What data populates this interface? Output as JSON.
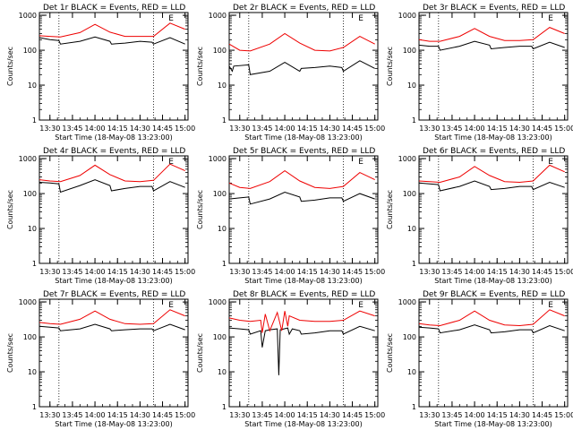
{
  "figure": {
    "ylabel": "Counts/sec",
    "xlabel": "Start Time (18-May-08 13:23:00)",
    "legend_text": "BLACK = Events, RED = LLD",
    "flag_text": "E",
    "x_ticks": [
      "13:30",
      "13:45",
      "14:00",
      "14:15",
      "14:30",
      "14:45",
      "15:00"
    ],
    "y_ticks": [
      "1",
      "10",
      "100",
      "1000"
    ],
    "y_scale": "log"
  },
  "colors": {
    "events": "#000000",
    "lld": "#ee0000",
    "axes": "#000000"
  },
  "chart_data": [
    {
      "type": "line",
      "title": "Det 1r",
      "xlim": [
        13.383,
        15.033
      ],
      "ylim": [
        1,
        1000
      ],
      "vlines": [
        "13:36",
        "14:39"
      ],
      "series": [
        {
          "name": "Events",
          "x": [
            "13:23",
            "13:30",
            "13:36",
            "13:37",
            "13:50",
            "14:00",
            "14:10",
            "14:11",
            "14:20",
            "14:30",
            "14:38",
            "14:39",
            "14:50",
            "15:00"
          ],
          "values": [
            230,
            200,
            190,
            150,
            180,
            240,
            180,
            150,
            160,
            180,
            170,
            150,
            230,
            150
          ]
        },
        {
          "name": "LLD",
          "x": [
            "13:23",
            "13:30",
            "13:37",
            "13:50",
            "14:00",
            "14:10",
            "14:20",
            "14:30",
            "14:39",
            "14:50",
            "15:00"
          ],
          "values": [
            260,
            250,
            240,
            320,
            550,
            330,
            250,
            250,
            250,
            600,
            400
          ]
        }
      ]
    },
    {
      "type": "line",
      "title": "Det 2r",
      "xlim": [
        13.383,
        15.033
      ],
      "ylim": [
        1,
        1000
      ],
      "vlines": [
        "13:36",
        "14:39"
      ],
      "series": [
        {
          "name": "Events",
          "x": [
            "13:23",
            "13:25",
            "13:26",
            "13:36",
            "13:37",
            "13:50",
            "14:00",
            "14:10",
            "14:11",
            "14:20",
            "14:30",
            "14:38",
            "14:39",
            "14:50",
            "15:00"
          ],
          "values": [
            35,
            25,
            35,
            38,
            20,
            25,
            45,
            25,
            30,
            32,
            35,
            32,
            25,
            50,
            30
          ]
        },
        {
          "name": "LLD",
          "x": [
            "13:23",
            "13:30",
            "13:37",
            "13:50",
            "14:00",
            "14:10",
            "14:20",
            "14:30",
            "14:39",
            "14:50",
            "15:00"
          ],
          "values": [
            150,
            100,
            95,
            150,
            300,
            160,
            100,
            95,
            120,
            250,
            150
          ]
        }
      ]
    },
    {
      "type": "line",
      "title": "Det 3r",
      "xlim": [
        13.383,
        15.033
      ],
      "ylim": [
        1,
        1000
      ],
      "vlines": [
        "13:36",
        "14:39"
      ],
      "series": [
        {
          "name": "Events",
          "x": [
            "13:23",
            "13:30",
            "13:36",
            "13:37",
            "13:50",
            "14:00",
            "14:10",
            "14:11",
            "14:20",
            "14:30",
            "14:38",
            "14:39",
            "14:50",
            "15:00"
          ],
          "values": [
            140,
            130,
            130,
            100,
            130,
            180,
            140,
            110,
            120,
            130,
            130,
            110,
            170,
            120
          ]
        },
        {
          "name": "LLD",
          "x": [
            "13:23",
            "13:30",
            "13:37",
            "13:50",
            "14:00",
            "14:10",
            "14:20",
            "14:30",
            "14:39",
            "14:50",
            "15:00"
          ],
          "values": [
            200,
            180,
            180,
            250,
            420,
            250,
            190,
            190,
            200,
            450,
            300
          ]
        }
      ]
    },
    {
      "type": "line",
      "title": "Det 4r",
      "xlim": [
        13.383,
        15.033
      ],
      "ylim": [
        1,
        1000
      ],
      "vlines": [
        "13:36",
        "14:39"
      ],
      "series": [
        {
          "name": "Events",
          "x": [
            "13:23",
            "13:30",
            "13:36",
            "13:37",
            "13:50",
            "14:00",
            "14:10",
            "14:11",
            "14:20",
            "14:30",
            "14:38",
            "14:39",
            "14:50",
            "15:00"
          ],
          "values": [
            210,
            200,
            190,
            110,
            170,
            250,
            170,
            120,
            140,
            160,
            160,
            120,
            220,
            150
          ]
        },
        {
          "name": "LLD",
          "x": [
            "13:23",
            "13:30",
            "13:37",
            "13:50",
            "14:00",
            "14:10",
            "14:20",
            "14:30",
            "14:39",
            "14:50",
            "15:00"
          ],
          "values": [
            250,
            230,
            220,
            330,
            650,
            350,
            230,
            220,
            240,
            700,
            450
          ]
        }
      ]
    },
    {
      "type": "line",
      "title": "Det 5r",
      "xlim": [
        13.383,
        15.033
      ],
      "ylim": [
        1,
        1000
      ],
      "vlines": [
        "13:36",
        "14:39"
      ],
      "series": [
        {
          "name": "Events",
          "x": [
            "13:23",
            "13:30",
            "13:36",
            "13:37",
            "13:50",
            "14:00",
            "14:10",
            "14:11",
            "14:20",
            "14:30",
            "14:38",
            "14:39",
            "14:50",
            "15:00"
          ],
          "values": [
            70,
            75,
            80,
            50,
            70,
            110,
            80,
            60,
            65,
            75,
            75,
            60,
            100,
            70
          ]
        },
        {
          "name": "LLD",
          "x": [
            "13:23",
            "13:30",
            "13:37",
            "13:50",
            "14:00",
            "14:10",
            "14:20",
            "14:30",
            "14:39",
            "14:50",
            "15:00"
          ],
          "values": [
            200,
            150,
            140,
            220,
            450,
            230,
            150,
            140,
            160,
            400,
            250
          ]
        }
      ]
    },
    {
      "type": "line",
      "title": "Det 6r",
      "xlim": [
        13.383,
        15.033
      ],
      "ylim": [
        1,
        1000
      ],
      "vlines": [
        "13:36",
        "14:39"
      ],
      "series": [
        {
          "name": "Events",
          "x": [
            "13:23",
            "13:30",
            "13:36",
            "13:37",
            "13:50",
            "14:00",
            "14:10",
            "14:11",
            "14:20",
            "14:30",
            "14:38",
            "14:39",
            "14:50",
            "15:00"
          ],
          "values": [
            200,
            190,
            180,
            120,
            160,
            230,
            160,
            130,
            140,
            160,
            160,
            130,
            210,
            150
          ]
        },
        {
          "name": "LLD",
          "x": [
            "13:23",
            "13:30",
            "13:37",
            "13:50",
            "14:00",
            "14:10",
            "14:20",
            "14:30",
            "14:39",
            "14:50",
            "15:00"
          ],
          "values": [
            230,
            220,
            210,
            300,
            600,
            330,
            220,
            210,
            230,
            650,
            420
          ]
        }
      ]
    },
    {
      "type": "line",
      "title": "Det 7r",
      "xlim": [
        13.383,
        15.033
      ],
      "ylim": [
        1,
        1000
      ],
      "vlines": [
        "13:36",
        "14:39"
      ],
      "series": [
        {
          "name": "Events",
          "x": [
            "13:23",
            "13:30",
            "13:36",
            "13:37",
            "13:50",
            "14:00",
            "14:10",
            "14:11",
            "14:20",
            "14:30",
            "14:38",
            "14:39",
            "14:50",
            "15:00"
          ],
          "values": [
            200,
            190,
            180,
            150,
            170,
            230,
            170,
            150,
            160,
            170,
            170,
            150,
            230,
            160
          ]
        },
        {
          "name": "LLD",
          "x": [
            "13:23",
            "13:30",
            "13:37",
            "13:50",
            "14:00",
            "14:10",
            "14:20",
            "14:30",
            "14:39",
            "14:50",
            "15:00"
          ],
          "values": [
            260,
            240,
            230,
            320,
            550,
            320,
            240,
            230,
            240,
            600,
            400
          ]
        }
      ]
    },
    {
      "type": "line",
      "title": "Det 8r",
      "xlim": [
        13.383,
        15.033
      ],
      "ylim": [
        1,
        1000
      ],
      "vlines": [
        "13:36",
        "14:39"
      ],
      "series": [
        {
          "name": "Events",
          "x": [
            "13:23",
            "13:30",
            "13:36",
            "13:37",
            "13:44",
            "13:45",
            "13:47",
            "13:50",
            "13:55",
            "13:56",
            "13:57",
            "14:02",
            "14:03",
            "14:05",
            "14:10",
            "14:11",
            "14:20",
            "14:30",
            "14:38",
            "14:39",
            "14:50",
            "15:00"
          ],
          "values": [
            180,
            170,
            160,
            120,
            150,
            50,
            150,
            160,
            170,
            8,
            160,
            180,
            120,
            170,
            150,
            120,
            130,
            150,
            150,
            120,
            200,
            150
          ]
        },
        {
          "name": "LLD",
          "x": [
            "13:23",
            "13:30",
            "13:37",
            "13:44",
            "13:45",
            "13:47",
            "13:50",
            "13:55",
            "13:58",
            "14:00",
            "14:02",
            "14:03",
            "14:10",
            "14:20",
            "14:30",
            "14:39",
            "14:50",
            "15:00"
          ],
          "values": [
            350,
            300,
            280,
            300,
            130,
            450,
            150,
            500,
            150,
            550,
            200,
            400,
            300,
            280,
            280,
            300,
            550,
            400
          ]
        }
      ]
    },
    {
      "type": "line",
      "title": "Det 9r",
      "xlim": [
        13.383,
        15.033
      ],
      "ylim": [
        1,
        1000
      ],
      "vlines": [
        "13:36",
        "14:39"
      ],
      "series": [
        {
          "name": "Events",
          "x": [
            "13:23",
            "13:30",
            "13:36",
            "13:37",
            "13:50",
            "14:00",
            "14:10",
            "14:11",
            "14:20",
            "14:30",
            "14:38",
            "14:39",
            "14:50",
            "15:00"
          ],
          "values": [
            190,
            180,
            170,
            130,
            160,
            220,
            160,
            130,
            140,
            160,
            160,
            130,
            210,
            150
          ]
        },
        {
          "name": "LLD",
          "x": [
            "13:23",
            "13:30",
            "13:37",
            "13:50",
            "14:00",
            "14:10",
            "14:20",
            "14:30",
            "14:39",
            "14:50",
            "15:00"
          ],
          "values": [
            240,
            220,
            210,
            300,
            550,
            300,
            220,
            210,
            230,
            600,
            400
          ]
        }
      ]
    }
  ]
}
